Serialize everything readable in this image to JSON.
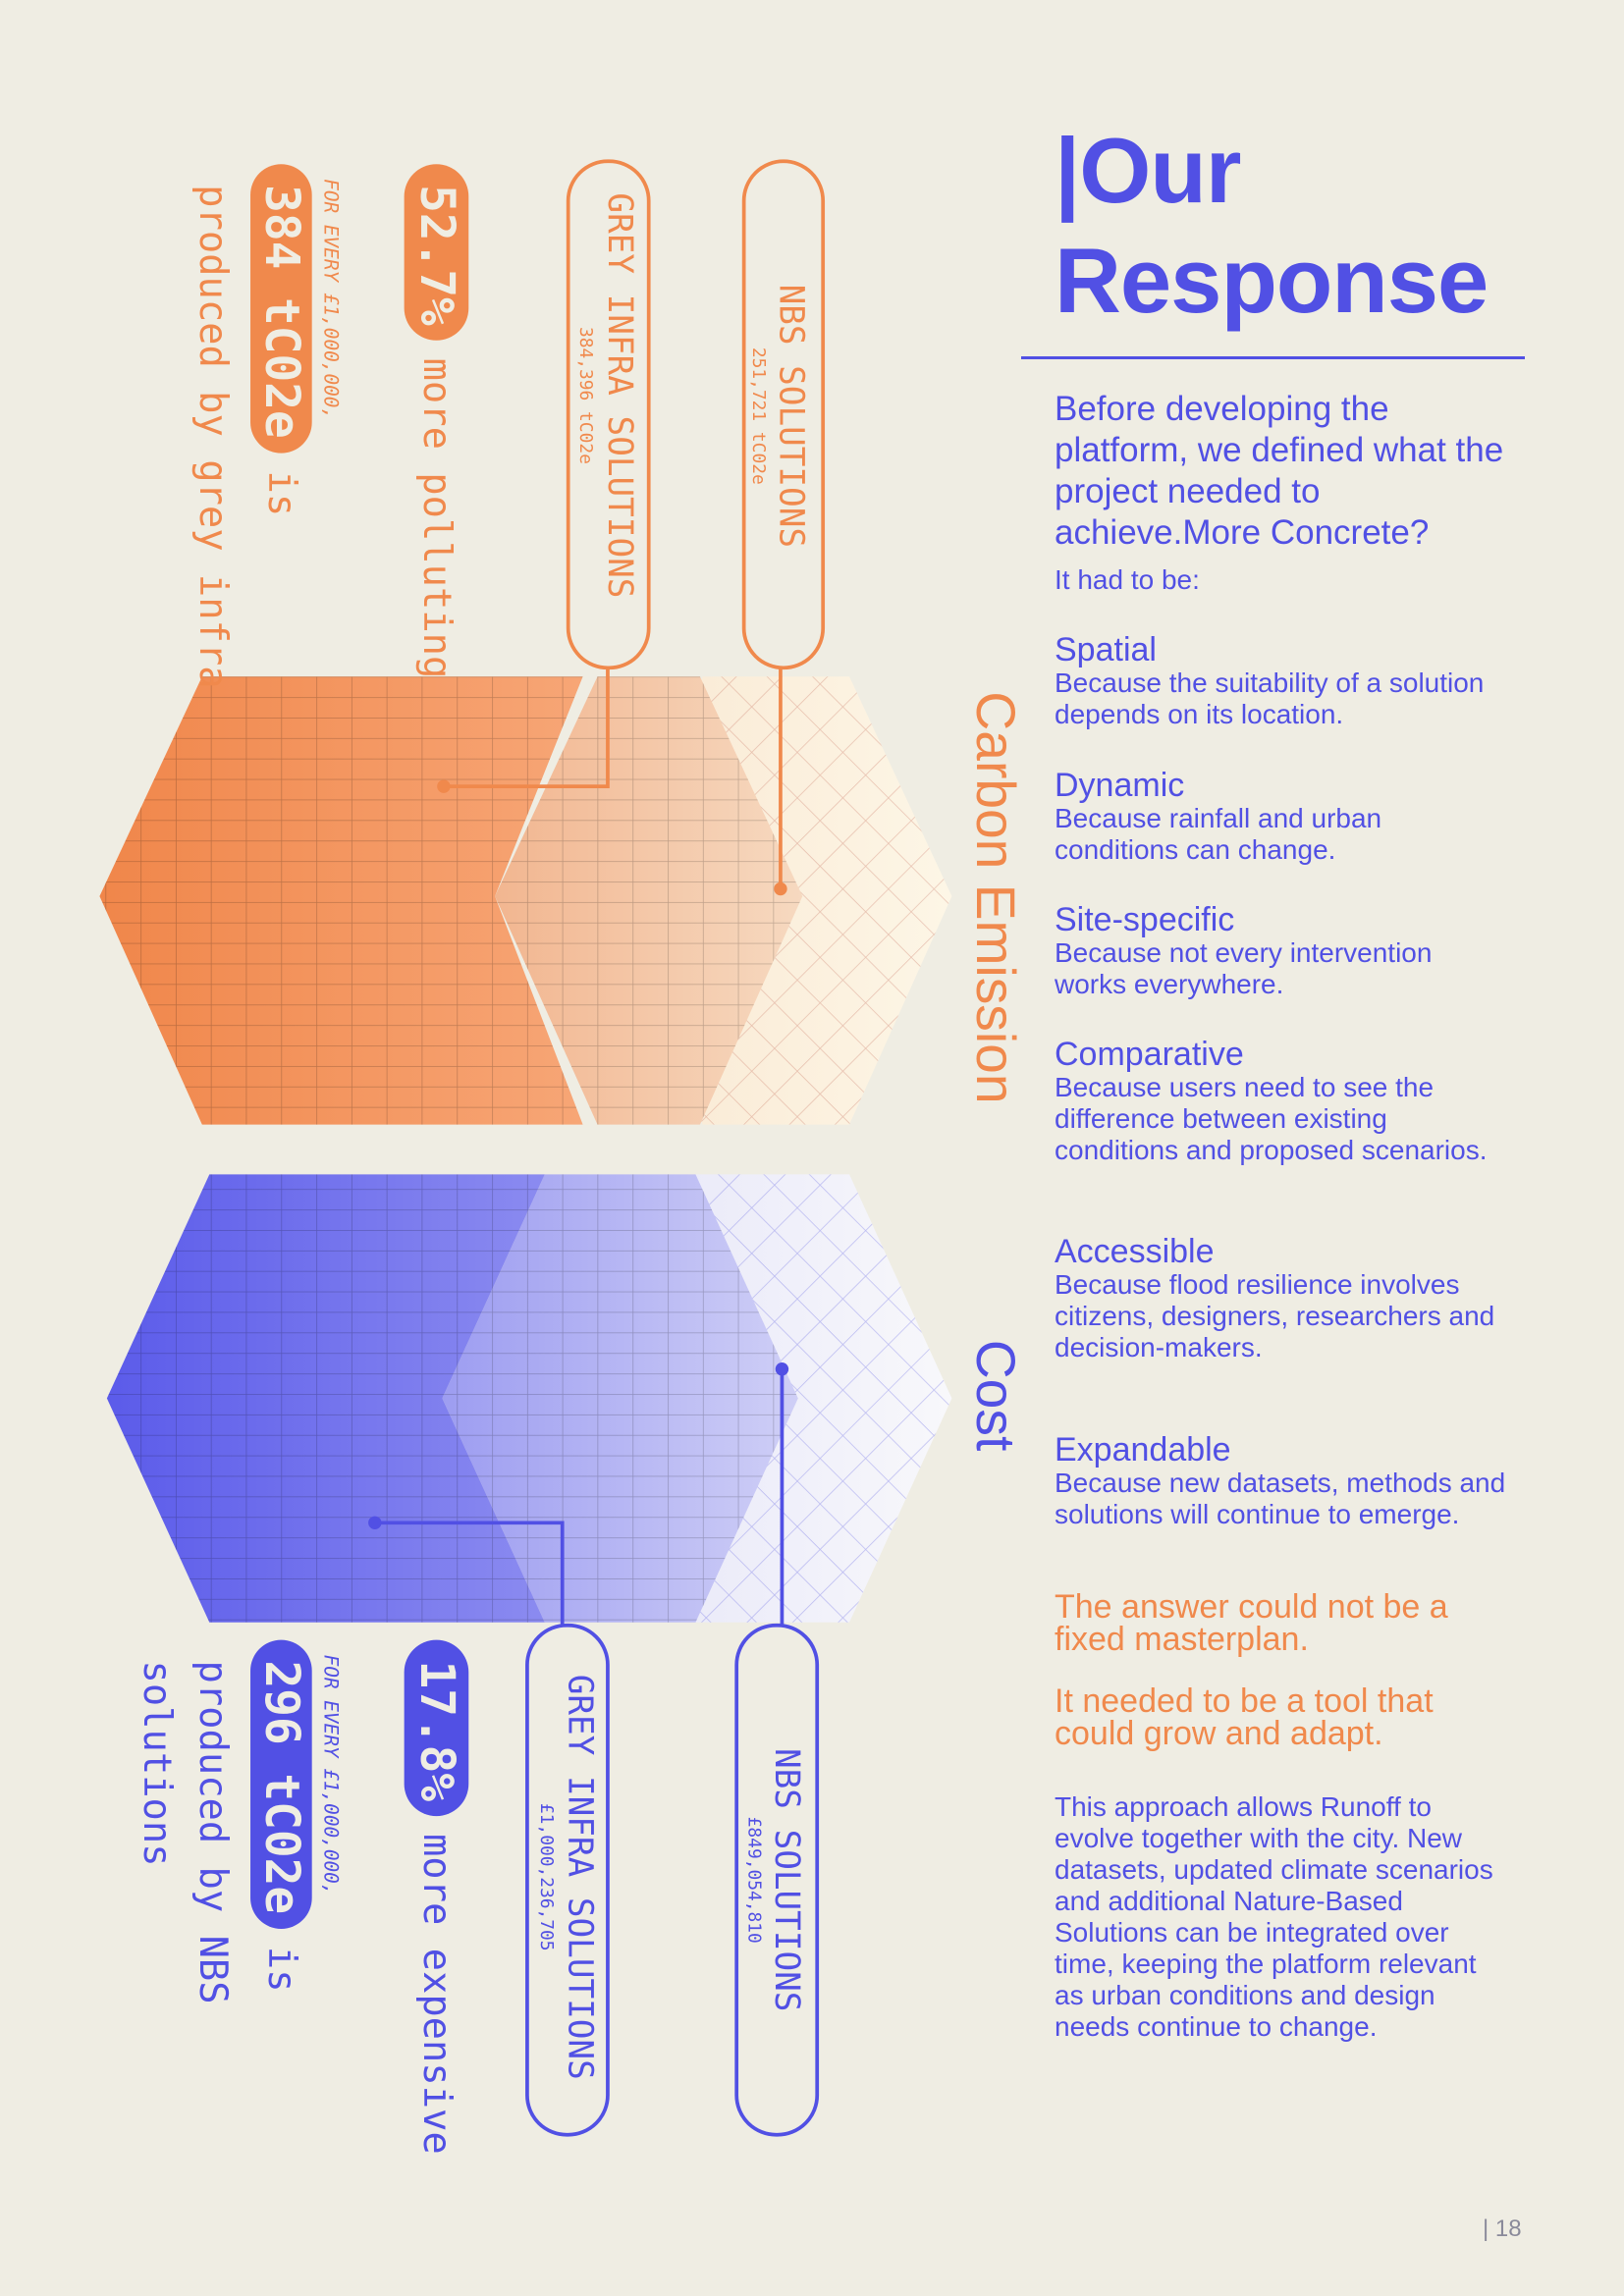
{
  "infographic": {
    "carbon": {
      "heading": "Carbon Emission",
      "nbs": {
        "label": "NBS SOLUTIONS",
        "value": "251,721 tC02e"
      },
      "grey": {
        "label": "GREY INFRA SOLUTIONS",
        "value": "384,396 tC02e"
      },
      "stat": {
        "badge": "52.7%",
        "text": "more polluting"
      },
      "note": {
        "prefix": "FOR EVERY £1,000,000,",
        "badge": "384 tC02e",
        "suffix": "is",
        "lines": [
          "produced by grey infra"
        ]
      }
    },
    "cost": {
      "heading": "Cost",
      "nbs": {
        "label": "NBS SOLUTIONS",
        "value": "£849,054,810"
      },
      "grey": {
        "label": "GREY INFRA SOLUTIONS",
        "value": "£1,000,236,705"
      },
      "stat": {
        "badge": "17.8%",
        "text": "more expensive"
      },
      "note": {
        "prefix": "FOR EVERY £1,000,000,",
        "badge": "296 tC02e",
        "suffix": "is",
        "lines": [
          "produced by NBS",
          "solutions"
        ]
      }
    }
  },
  "header": {
    "title_line1": "|Our",
    "title_line2": "Response"
  },
  "intro": "Before developing the platform, we defined what the project needed to achieve.More Concrete?",
  "lead": "It had to be:",
  "criteria": [
    {
      "title": "Spatial",
      "text": "Because the suitability of a solution depends on its location."
    },
    {
      "title": "Dynamic",
      "text": "Because rainfall and urban conditions can change."
    },
    {
      "title": "Site-specific",
      "text": "Because not every intervention works everywhere."
    },
    {
      "title": "Comparative",
      "text": "Because users need to see the difference between existing conditions and proposed scenarios."
    },
    {
      "title": "Accessible",
      "text": "Because flood resilience involves citizens, designers, researchers and decision-makers."
    },
    {
      "title": "Expandable",
      "text": "Because new datasets, methods and solutions will continue to emerge."
    }
  ],
  "conclusion": [
    "The answer could not be a fixed masterplan.",
    "It needed to be a tool that could grow and adapt."
  ],
  "closing": "This approach allows Runoff to evolve together with the city. New datasets, updated climate scenarios and additional Nature-Based Solutions can be integrated over time, keeping the platform relevant as urban conditions and design needs continue to change.",
  "footer": {
    "page": "| 18"
  }
}
